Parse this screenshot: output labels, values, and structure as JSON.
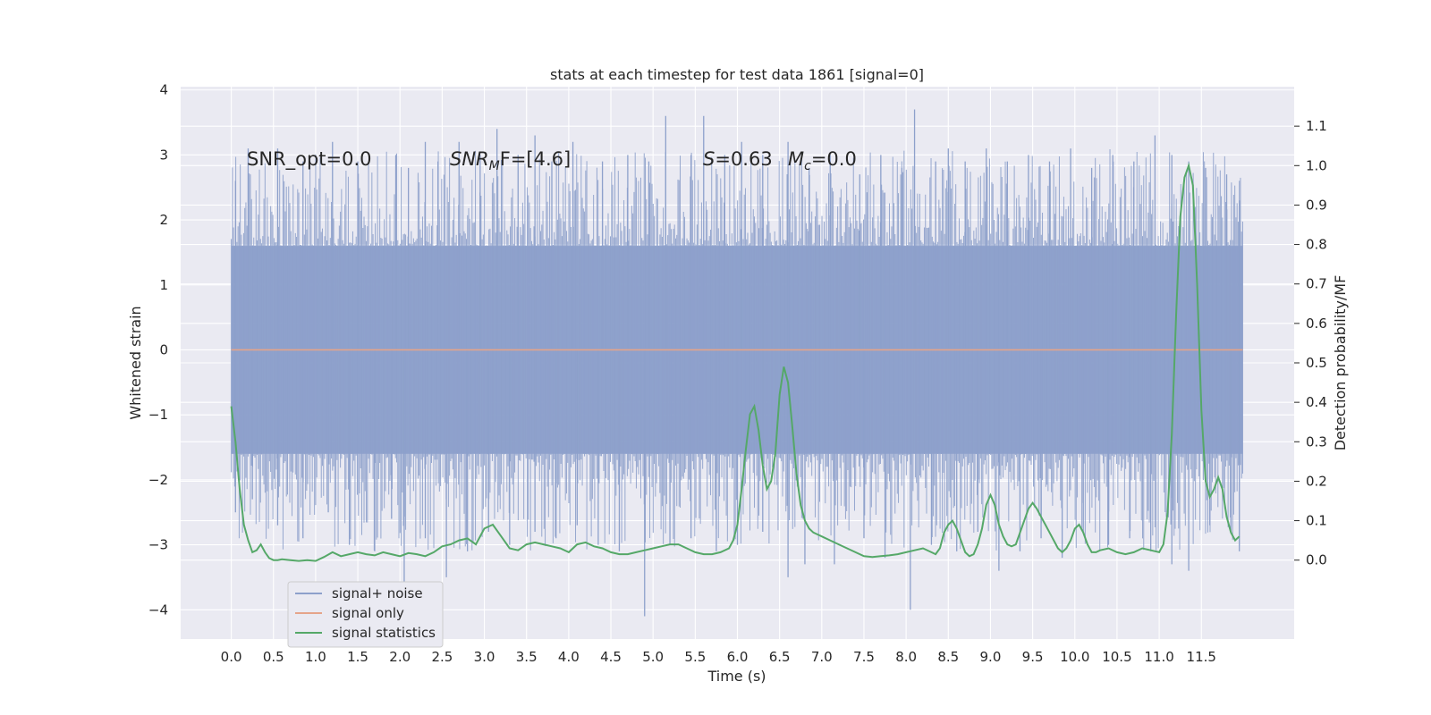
{
  "chart_data": {
    "type": "line",
    "title": "stats at each timestep for test data 1861 [signal=0]",
    "xlabel": "Time (s)",
    "ylabel": "Whitened strain",
    "y2label": "Detection probability/MF",
    "xlim": [
      -0.6,
      12.6
    ],
    "ylim": [
      -4.45,
      4.05
    ],
    "y2lim": [
      -0.2,
      1.2
    ],
    "x_ticks": [
      0.0,
      0.5,
      1.0,
      1.5,
      2.0,
      2.5,
      3.0,
      3.5,
      4.0,
      4.5,
      5.0,
      5.5,
      6.0,
      6.5,
      7.0,
      7.5,
      8.0,
      8.5,
      9.0,
      9.5,
      10.0,
      10.5,
      11.0,
      11.5
    ],
    "x_tick_labels": [
      "0.0",
      "0.5",
      "1.0",
      "1.5",
      "2.0",
      "2.5",
      "3.0",
      "3.5",
      "4.0",
      "4.5",
      "5.0",
      "5.5",
      "6.0",
      "6.5",
      "7.0",
      "7.5",
      "8.0",
      "8.5",
      "9.0",
      "9.5",
      "10.0",
      "10.5",
      "11.0",
      "11.5"
    ],
    "y_ticks": [
      4,
      3,
      2,
      1,
      0,
      -1,
      -2,
      -3,
      -4
    ],
    "y_tick_labels": [
      "4",
      "3",
      "2",
      "1",
      "0",
      "−1",
      "−2",
      "−3",
      "−4"
    ],
    "y2_ticks": [
      1.1,
      1.0,
      0.9,
      0.8,
      0.7,
      0.6,
      0.5,
      0.4,
      0.3,
      0.2,
      0.1,
      0.0
    ],
    "y2_tick_labels": [
      "1.1",
      "1.0",
      "0.9",
      "0.8",
      "0.7",
      "0.6",
      "0.5",
      "0.4",
      "0.3",
      "0.2",
      "0.1",
      "0.0"
    ],
    "grid": true,
    "legend_position": "lower-left",
    "annotations": {
      "snr_opt": "SNR_opt=0.0",
      "snr_mf_base": "SNR",
      "snr_mf_sub": "M",
      "snr_mf_rest": "F=[4.6]",
      "s_var": "S",
      "s_val": "=0.63",
      "mc_base": "M",
      "mc_sub": "c",
      "mc_val": "=0.0"
    },
    "series": [
      {
        "name": "signal+ noise",
        "axis": "left",
        "color": "#8da0cb",
        "t_range": [
          0.0,
          11.99
        ],
        "typical_envelope": [
          -1.6,
          1.6
        ],
        "peaks": [
          [
            0.05,
            2.6
          ],
          [
            0.2,
            3.1
          ],
          [
            0.55,
            3.1
          ],
          [
            0.85,
            2.9
          ],
          [
            1.2,
            3.2
          ],
          [
            1.5,
            2.9
          ],
          [
            1.95,
            3.0
          ],
          [
            2.1,
            2.8
          ],
          [
            2.3,
            3.2
          ],
          [
            2.45,
            2.9
          ],
          [
            2.7,
            3.2
          ],
          [
            2.95,
            3.0
          ],
          [
            3.15,
            3.4
          ],
          [
            3.4,
            3.0
          ],
          [
            3.6,
            3.3
          ],
          [
            3.8,
            2.9
          ],
          [
            4.05,
            3.2
          ],
          [
            4.4,
            2.9
          ],
          [
            4.7,
            3.0
          ],
          [
            4.95,
            2.9
          ],
          [
            5.15,
            3.6
          ],
          [
            5.45,
            3.0
          ],
          [
            5.6,
            3.6
          ],
          [
            5.85,
            3.0
          ],
          [
            6.05,
            3.2
          ],
          [
            6.3,
            3.0
          ],
          [
            6.6,
            3.2
          ],
          [
            6.85,
            2.8
          ],
          [
            7.1,
            3.0
          ],
          [
            7.45,
            2.7
          ],
          [
            7.7,
            3.0
          ],
          [
            7.95,
            2.8
          ],
          [
            8.1,
            3.7
          ],
          [
            8.35,
            2.9
          ],
          [
            8.5,
            3.1
          ],
          [
            8.7,
            2.9
          ],
          [
            8.95,
            3.1
          ],
          [
            9.2,
            2.9
          ],
          [
            9.45,
            3.0
          ],
          [
            9.7,
            2.9
          ],
          [
            9.95,
            3.1
          ],
          [
            10.2,
            2.8
          ],
          [
            10.45,
            3.0
          ],
          [
            10.7,
            2.9
          ],
          [
            10.95,
            3.3
          ],
          [
            11.15,
            3.0
          ],
          [
            11.35,
            2.9
          ],
          [
            11.55,
            2.8
          ],
          [
            11.8,
            2.7
          ],
          [
            11.95,
            2.3
          ]
        ],
        "troughs": [
          [
            0.05,
            -2.5
          ],
          [
            0.25,
            -2.3
          ],
          [
            0.55,
            -2.7
          ],
          [
            0.85,
            -2.9
          ],
          [
            1.15,
            -2.5
          ],
          [
            1.4,
            -3.0
          ],
          [
            1.7,
            -3.1
          ],
          [
            1.9,
            -2.6
          ],
          [
            2.05,
            -3.6
          ],
          [
            2.3,
            -2.9
          ],
          [
            2.55,
            -3.5
          ],
          [
            2.8,
            -3.1
          ],
          [
            3.05,
            -2.8
          ],
          [
            3.3,
            -3.0
          ],
          [
            3.6,
            -2.8
          ],
          [
            3.85,
            -2.9
          ],
          [
            4.1,
            -2.7
          ],
          [
            4.35,
            -3.0
          ],
          [
            4.6,
            -3.1
          ],
          [
            4.9,
            -4.1
          ],
          [
            5.2,
            -3.0
          ],
          [
            5.45,
            -2.9
          ],
          [
            5.75,
            -3.1
          ],
          [
            6.0,
            -3.0
          ],
          [
            6.3,
            -2.8
          ],
          [
            6.6,
            -3.5
          ],
          [
            6.8,
            -3.3
          ],
          [
            7.15,
            -3.3
          ],
          [
            7.5,
            -2.9
          ],
          [
            7.75,
            -3.2
          ],
          [
            8.05,
            -4.0
          ],
          [
            8.3,
            -3.0
          ],
          [
            8.6,
            -3.1
          ],
          [
            8.85,
            -2.8
          ],
          [
            9.1,
            -3.4
          ],
          [
            9.35,
            -3.1
          ],
          [
            9.6,
            -2.9
          ],
          [
            9.85,
            -3.2
          ],
          [
            10.1,
            -2.8
          ],
          [
            10.4,
            -3.0
          ],
          [
            10.65,
            -2.9
          ],
          [
            10.9,
            -3.1
          ],
          [
            11.15,
            -3.3
          ],
          [
            11.35,
            -3.4
          ],
          [
            11.6,
            -2.7
          ],
          [
            11.85,
            -2.8
          ],
          [
            11.95,
            -3.1
          ]
        ]
      },
      {
        "name": "signal only",
        "axis": "left",
        "color": "#e5a48a",
        "x": [
          0.0,
          11.99
        ],
        "y": [
          0.0,
          0.0
        ]
      },
      {
        "name": "signal statistics",
        "axis": "right",
        "color": "#55a868",
        "x": [
          0.0,
          0.05,
          0.1,
          0.15,
          0.2,
          0.25,
          0.3,
          0.35,
          0.4,
          0.45,
          0.5,
          0.55,
          0.6,
          0.7,
          0.8,
          0.9,
          1.0,
          1.1,
          1.2,
          1.3,
          1.4,
          1.5,
          1.6,
          1.7,
          1.8,
          1.9,
          2.0,
          2.1,
          2.2,
          2.3,
          2.4,
          2.5,
          2.6,
          2.7,
          2.8,
          2.9,
          3.0,
          3.1,
          3.2,
          3.3,
          3.4,
          3.5,
          3.6,
          3.7,
          3.8,
          3.9,
          4.0,
          4.1,
          4.2,
          4.3,
          4.4,
          4.5,
          4.6,
          4.7,
          4.8,
          4.9,
          5.0,
          5.1,
          5.2,
          5.3,
          5.4,
          5.5,
          5.6,
          5.7,
          5.8,
          5.9,
          5.95,
          6.0,
          6.05,
          6.1,
          6.15,
          6.2,
          6.25,
          6.3,
          6.35,
          6.4,
          6.45,
          6.5,
          6.55,
          6.6,
          6.65,
          6.7,
          6.75,
          6.8,
          6.85,
          6.9,
          6.95,
          7.0,
          7.1,
          7.2,
          7.3,
          7.4,
          7.5,
          7.6,
          7.7,
          7.8,
          7.9,
          8.0,
          8.1,
          8.2,
          8.3,
          8.35,
          8.4,
          8.45,
          8.5,
          8.55,
          8.6,
          8.65,
          8.7,
          8.75,
          8.8,
          8.85,
          8.9,
          8.95,
          9.0,
          9.05,
          9.1,
          9.15,
          9.2,
          9.25,
          9.3,
          9.35,
          9.4,
          9.45,
          9.5,
          9.55,
          9.6,
          9.65,
          9.7,
          9.75,
          9.8,
          9.85,
          9.9,
          9.95,
          10.0,
          10.05,
          10.1,
          10.15,
          10.2,
          10.25,
          10.3,
          10.4,
          10.5,
          10.6,
          10.7,
          10.8,
          10.9,
          11.0,
          11.05,
          11.1,
          11.15,
          11.2,
          11.25,
          11.3,
          11.35,
          11.4,
          11.45,
          11.5,
          11.55,
          11.6,
          11.65,
          11.7,
          11.75,
          11.8,
          11.85,
          11.9,
          11.95
        ],
        "y": [
          0.39,
          0.3,
          0.18,
          0.09,
          0.05,
          0.02,
          0.025,
          0.04,
          0.02,
          0.005,
          0.0,
          0.0,
          0.002,
          0.0,
          -0.002,
          0.0,
          -0.002,
          0.008,
          0.02,
          0.01,
          0.015,
          0.02,
          0.015,
          0.012,
          0.02,
          0.015,
          0.01,
          0.018,
          0.015,
          0.01,
          0.02,
          0.035,
          0.04,
          0.05,
          0.055,
          0.04,
          0.08,
          0.09,
          0.06,
          0.03,
          0.025,
          0.04,
          0.045,
          0.04,
          0.035,
          0.03,
          0.02,
          0.04,
          0.045,
          0.035,
          0.03,
          0.02,
          0.015,
          0.015,
          0.02,
          0.025,
          0.03,
          0.035,
          0.04,
          0.04,
          0.03,
          0.02,
          0.015,
          0.015,
          0.02,
          0.03,
          0.05,
          0.09,
          0.18,
          0.28,
          0.37,
          0.39,
          0.33,
          0.24,
          0.18,
          0.2,
          0.27,
          0.42,
          0.49,
          0.45,
          0.34,
          0.22,
          0.14,
          0.1,
          0.08,
          0.07,
          0.065,
          0.06,
          0.05,
          0.04,
          0.03,
          0.02,
          0.01,
          0.008,
          0.01,
          0.012,
          0.015,
          0.02,
          0.025,
          0.03,
          0.02,
          0.015,
          0.03,
          0.07,
          0.09,
          0.1,
          0.08,
          0.05,
          0.02,
          0.01,
          0.015,
          0.04,
          0.08,
          0.14,
          0.165,
          0.14,
          0.09,
          0.06,
          0.04,
          0.035,
          0.04,
          0.07,
          0.1,
          0.13,
          0.145,
          0.13,
          0.11,
          0.09,
          0.07,
          0.05,
          0.03,
          0.02,
          0.03,
          0.05,
          0.08,
          0.09,
          0.07,
          0.04,
          0.02,
          0.02,
          0.025,
          0.03,
          0.02,
          0.015,
          0.02,
          0.03,
          0.025,
          0.02,
          0.04,
          0.12,
          0.32,
          0.62,
          0.87,
          0.97,
          1.0,
          0.95,
          0.7,
          0.38,
          0.2,
          0.16,
          0.18,
          0.21,
          0.18,
          0.11,
          0.07,
          0.05,
          0.06
        ]
      }
    ]
  },
  "legend": {
    "items": [
      {
        "label": "signal+ noise",
        "color": "#8da0cb"
      },
      {
        "label": "signal only",
        "color": "#e5a48a"
      },
      {
        "label": "signal statistics",
        "color": "#55a868"
      }
    ]
  },
  "colors": {
    "plot_bg": "#eaeaf2",
    "grid": "#ffffff",
    "text": "#262626"
  }
}
